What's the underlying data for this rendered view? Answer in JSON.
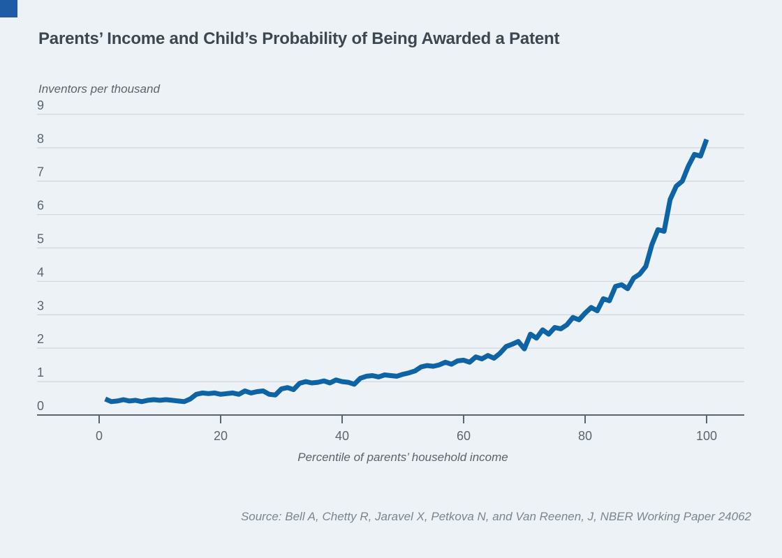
{
  "page": {
    "background_color": "#edf2f7",
    "accent_square_color": "#1e5ca6"
  },
  "header": {
    "title": "Parents’ Income and Child’s Probability of Being Awarded a Patent"
  },
  "footer": {
    "source": "Source: Bell A, Chetty R, Jaravel X, Petkova N, and Van Reenen, J, NBER Working Paper 24062"
  },
  "chart_data": {
    "type": "line",
    "title": "Parents’ Income and Child’s Probability of Being Awarded a Patent",
    "ylabel": "Inventors per thousand",
    "xlabel": "Percentile of parents’ household income",
    "xlim": [
      0,
      100
    ],
    "ylim": [
      0,
      9
    ],
    "xticks": [
      0,
      20,
      40,
      60,
      80,
      100
    ],
    "yticks": [
      0,
      1,
      2,
      3,
      4,
      5,
      6,
      7,
      8,
      9
    ],
    "grid": "horizontal",
    "legend": "none",
    "line_color": "#0e63a4",
    "gridline_color": "#d3d8dd",
    "axis_color": "#5b6570",
    "x": [
      1,
      2,
      3,
      4,
      5,
      6,
      7,
      8,
      9,
      10,
      11,
      12,
      13,
      14,
      15,
      16,
      17,
      18,
      19,
      20,
      21,
      22,
      23,
      24,
      25,
      26,
      27,
      28,
      29,
      30,
      31,
      32,
      33,
      34,
      35,
      36,
      37,
      38,
      39,
      40,
      41,
      42,
      43,
      44,
      45,
      46,
      47,
      48,
      49,
      50,
      51,
      52,
      53,
      54,
      55,
      56,
      57,
      58,
      59,
      60,
      61,
      62,
      63,
      64,
      65,
      66,
      67,
      68,
      69,
      70,
      71,
      72,
      73,
      74,
      75,
      76,
      77,
      78,
      79,
      80,
      81,
      82,
      83,
      84,
      85,
      86,
      87,
      88,
      89,
      90,
      91,
      92,
      93,
      94,
      95,
      96,
      97,
      98,
      99,
      100
    ],
    "values": [
      0.48,
      0.4,
      0.42,
      0.46,
      0.42,
      0.44,
      0.4,
      0.44,
      0.46,
      0.44,
      0.46,
      0.44,
      0.42,
      0.4,
      0.48,
      0.62,
      0.66,
      0.64,
      0.66,
      0.62,
      0.64,
      0.66,
      0.62,
      0.72,
      0.66,
      0.7,
      0.72,
      0.62,
      0.6,
      0.78,
      0.82,
      0.76,
      0.95,
      1.0,
      0.96,
      0.98,
      1.02,
      0.96,
      1.05,
      1.0,
      0.98,
      0.92,
      1.1,
      1.16,
      1.18,
      1.14,
      1.2,
      1.18,
      1.16,
      1.22,
      1.26,
      1.32,
      1.44,
      1.48,
      1.46,
      1.5,
      1.58,
      1.52,
      1.62,
      1.64,
      1.58,
      1.74,
      1.68,
      1.78,
      1.7,
      1.85,
      2.05,
      2.12,
      2.2,
      1.98,
      2.42,
      2.3,
      2.55,
      2.42,
      2.62,
      2.58,
      2.7,
      2.92,
      2.85,
      3.05,
      3.22,
      3.12,
      3.48,
      3.42,
      3.85,
      3.9,
      3.78,
      4.1,
      4.22,
      4.45,
      5.1,
      5.55,
      5.5,
      6.45,
      6.85,
      7.0,
      7.45,
      7.8,
      7.75,
      8.25
    ]
  }
}
